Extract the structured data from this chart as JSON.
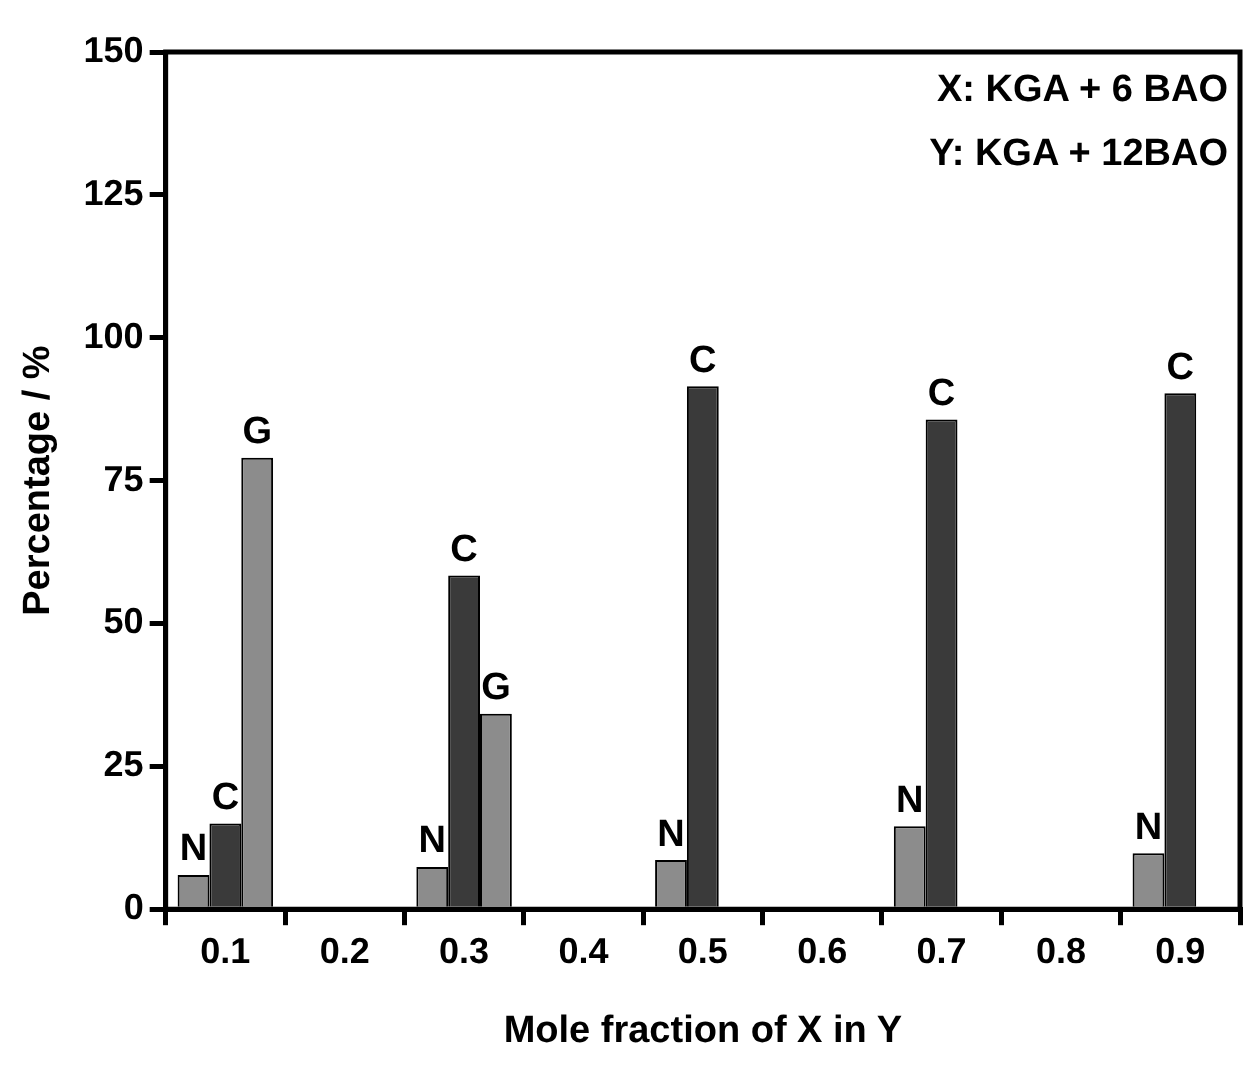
{
  "chart_data": {
    "type": "bar",
    "xlabel": "Mole fraction of X in Y",
    "ylabel": "Percentage / %",
    "x": [
      0.1,
      0.3,
      0.5,
      0.7,
      0.9
    ],
    "series": [
      {
        "name": "N",
        "color": "#8c8c8c",
        "values": [
          6,
          7.4,
          8.6,
          14.5,
          9.8
        ]
      },
      {
        "name": "C",
        "color": "#3a3a3a",
        "values": [
          15,
          58.4,
          91.5,
          85.7,
          90.3
        ]
      },
      {
        "name": "G",
        "color": "#8c8c8c",
        "values": [
          79,
          34.2,
          null,
          null,
          null
        ]
      }
    ],
    "xlim": [
      0.05,
      0.95
    ],
    "xticks": [
      0.1,
      0.2,
      0.3,
      0.4,
      0.5,
      0.6,
      0.7,
      0.8,
      0.9
    ],
    "ylim": [
      0,
      150
    ],
    "yticks": [
      0,
      25,
      50,
      75,
      100,
      125,
      150
    ],
    "grid": false,
    "legend": false,
    "annotations": [
      "X: KGA + 6 BAO",
      "Y: KGA + 12BAO"
    ]
  }
}
